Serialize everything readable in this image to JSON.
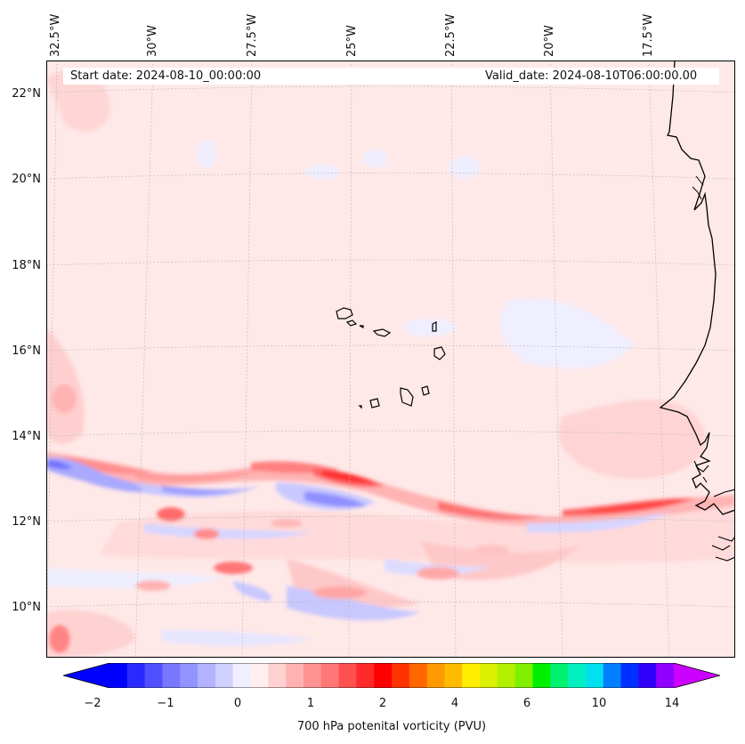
{
  "header": {
    "start_date": "Start date: 2024-08-10_00:00:00",
    "valid_date": "Valid_date: 2024-08-10T06:00:00.00"
  },
  "axes": {
    "lon_labels": [
      "32.5°W",
      "30°W",
      "27.5°W",
      "25°W",
      "22.5°W",
      "20°W",
      "17.5°W"
    ],
    "lat_labels": [
      "22°N",
      "20°N",
      "18°N",
      "16°N",
      "14°N",
      "12°N",
      "10°N"
    ]
  },
  "colorbar": {
    "tick_labels": [
      "−2",
      "−1",
      "0",
      "1",
      "2",
      "4",
      "6",
      "10",
      "14"
    ],
    "title": "700 hPa potenital vorticity (PVU)",
    "colors": [
      "#0000ff",
      "#2a2aff",
      "#5050ff",
      "#7777ff",
      "#9393ff",
      "#b2b2ff",
      "#d0d0ff",
      "#efefff",
      "#ffefef",
      "#ffd0d0",
      "#ffb2b2",
      "#ff9393",
      "#ff7777",
      "#ff5050",
      "#ff2a2a",
      "#ff0000",
      "#ff3300",
      "#ff6600",
      "#ff9900",
      "#ffbb00",
      "#ffee00",
      "#ddf000",
      "#b0f000",
      "#80f000",
      "#00f000",
      "#00f070",
      "#00f0c0",
      "#00e0f0",
      "#0080ff",
      "#0030ff",
      "#3000ff",
      "#9000ff"
    ]
  },
  "map": {
    "background": "#ffe7e7",
    "coastline_color": "#000000"
  }
}
